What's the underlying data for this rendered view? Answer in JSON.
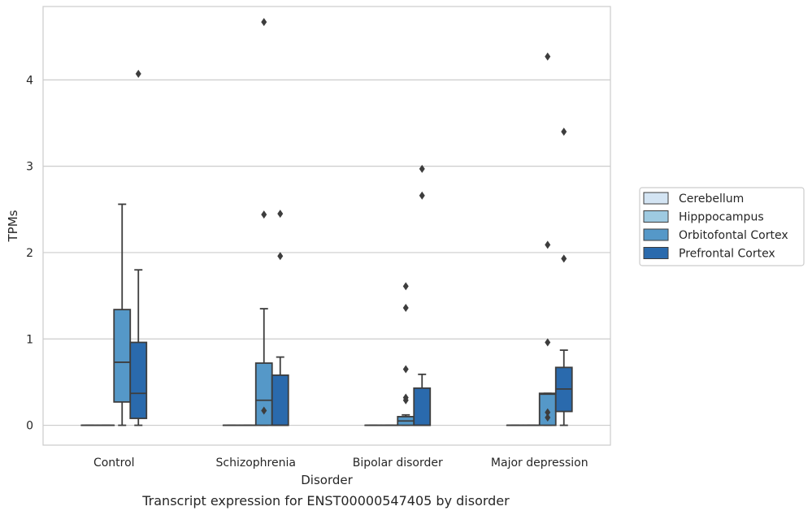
{
  "chart_data": {
    "type": "box",
    "title": "",
    "caption": "Transcript expression for ENST00000547405 by disorder",
    "xlabel": "Disorder",
    "ylabel": "TPMs",
    "ylim": [
      -0.23,
      4.85
    ],
    "yticks": [
      0,
      1,
      2,
      3,
      4
    ],
    "grid": "horizontal",
    "legend_position": "right",
    "categories": [
      "Control",
      "Schizophrenia",
      "Bipolar disorder",
      "Major depression"
    ],
    "series": [
      {
        "name": "Cerebellum",
        "color": "#d3e4f3",
        "boxes": [
          {
            "q1": 0,
            "median": 0,
            "q3": 0,
            "whisker_low": 0,
            "whisker_high": 0,
            "outliers": []
          },
          {
            "q1": 0,
            "median": 0,
            "q3": 0,
            "whisker_low": 0,
            "whisker_high": 0,
            "outliers": []
          },
          {
            "q1": 0,
            "median": 0,
            "q3": 0,
            "whisker_low": 0,
            "whisker_high": 0,
            "outliers": []
          },
          {
            "q1": 0,
            "median": 0,
            "q3": 0,
            "whisker_low": 0,
            "whisker_high": 0,
            "outliers": []
          }
        ]
      },
      {
        "name": "Hipppocampus",
        "color": "#9ecae1",
        "boxes": [
          {
            "q1": 0,
            "median": 0,
            "q3": 0,
            "whisker_low": 0,
            "whisker_high": 0,
            "outliers": []
          },
          {
            "q1": 0,
            "median": 0,
            "q3": 0,
            "whisker_low": 0,
            "whisker_high": 0,
            "outliers": []
          },
          {
            "q1": 0,
            "median": 0,
            "q3": 0,
            "whisker_low": 0,
            "whisker_high": 0,
            "outliers": []
          },
          {
            "q1": 0,
            "median": 0,
            "q3": 0,
            "whisker_low": 0,
            "whisker_high": 0,
            "outliers": []
          }
        ]
      },
      {
        "name": "Orbitofontal Cortex",
        "color": "#5598c8",
        "boxes": [
          {
            "q1": 0.27,
            "median": 0.73,
            "q3": 1.34,
            "whisker_low": 0,
            "whisker_high": 2.56,
            "outliers": []
          },
          {
            "q1": 0,
            "median": 0.29,
            "q3": 0.72,
            "whisker_low": 0,
            "whisker_high": 1.35,
            "outliers": [
              0.17,
              2.44,
              4.67
            ]
          },
          {
            "q1": 0,
            "median": 0.05,
            "q3": 0.1,
            "whisker_low": 0,
            "whisker_high": 0.12,
            "outliers": [
              0.29,
              0.65,
              0.32,
              1.36,
              1.61
            ]
          },
          {
            "q1": 0,
            "median": 0.36,
            "q3": 0.37,
            "whisker_low": 0,
            "whisker_high": 0.37,
            "outliers": [
              0.09,
              0.15,
              0.96,
              2.09,
              4.27
            ]
          }
        ]
      },
      {
        "name": "Prefrontal Cortex",
        "color": "#2a6aad",
        "boxes": [
          {
            "q1": 0.08,
            "median": 0.37,
            "q3": 0.96,
            "whisker_low": 0,
            "whisker_high": 1.8,
            "outliers": [
              4.07
            ]
          },
          {
            "q1": 0,
            "median": 0,
            "q3": 0.58,
            "whisker_low": 0,
            "whisker_high": 0.79,
            "outliers": [
              1.96,
              2.45
            ]
          },
          {
            "q1": 0,
            "median": 0,
            "q3": 0.43,
            "whisker_low": 0,
            "whisker_high": 0.59,
            "outliers": [
              2.66,
              2.97
            ]
          },
          {
            "q1": 0.16,
            "median": 0.42,
            "q3": 0.67,
            "whisker_low": 0,
            "whisker_high": 0.87,
            "outliers": [
              1.93,
              3.4
            ]
          }
        ]
      }
    ]
  }
}
